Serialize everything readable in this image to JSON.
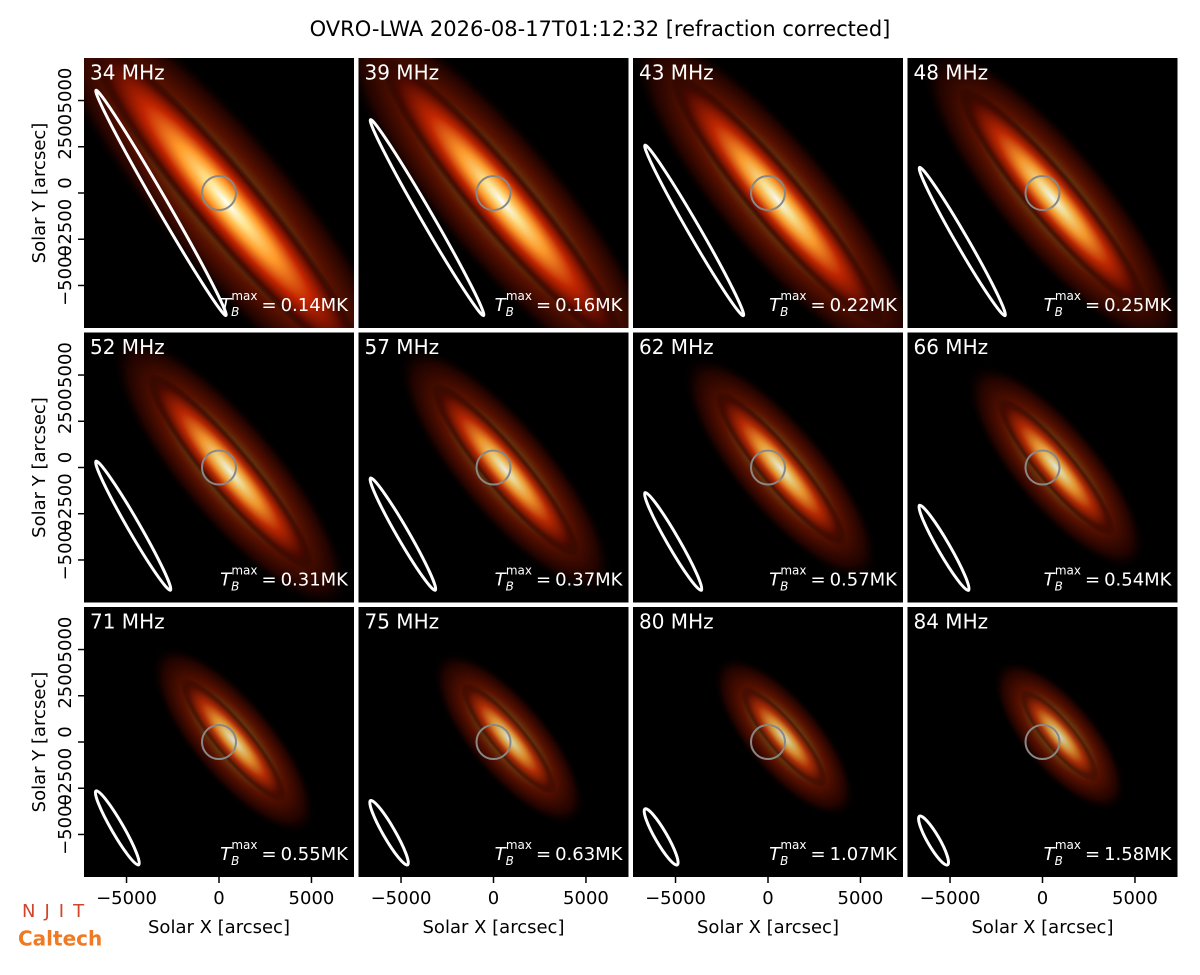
{
  "chart_data": {
    "type": "image_grid",
    "title": "OVRO-LWA 2026-08-17T01:12:32 [refraction corrected]",
    "xlabel": "Solar X [arcsec]",
    "ylabel": "Solar Y [arcsec]",
    "xlim": [
      -7300,
      7300
    ],
    "ylim": [
      -7300,
      7300
    ],
    "xticks": [
      {
        "value": -5000,
        "label": "−5000"
      },
      0,
      5000
    ],
    "yticks": [
      {
        "value": -5000,
        "label": "−5000"
      },
      {
        "value": -2500,
        "label": "−2500"
      },
      0,
      2500,
      5000
    ],
    "tb_symbol": {
      "base": "T",
      "sub": "B",
      "sup": "max",
      "relation": "="
    },
    "tb_unit": "MK",
    "panels": [
      {
        "label": "34 MHz",
        "tb_max": 0.14
      },
      {
        "label": "39 MHz",
        "tb_max": 0.16
      },
      {
        "label": "43 MHz",
        "tb_max": 0.22
      },
      {
        "label": "48 MHz",
        "tb_max": 0.25
      },
      {
        "label": "52 MHz",
        "tb_max": 0.31
      },
      {
        "label": "57 MHz",
        "tb_max": 0.37
      },
      {
        "label": "62 MHz",
        "tb_max": 0.57
      },
      {
        "label": "66 MHz",
        "tb_max": 0.54
      },
      {
        "label": "71 MHz",
        "tb_max": 0.55
      },
      {
        "label": "75 MHz",
        "tb_max": 0.63
      },
      {
        "label": "80 MHz",
        "tb_max": 1.07
      },
      {
        "label": "84 MHz",
        "tb_max": 1.58
      }
    ]
  },
  "logos": [
    "NJIT",
    "Caltech"
  ]
}
